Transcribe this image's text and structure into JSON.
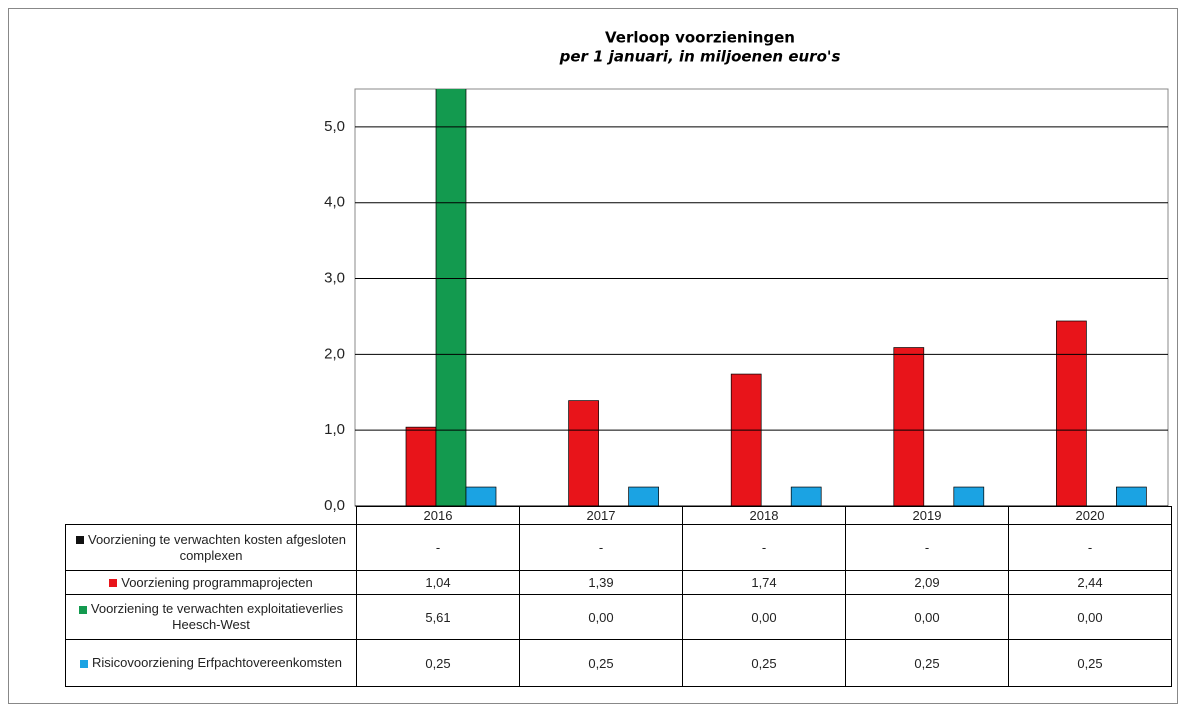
{
  "chart_data": {
    "type": "bar",
    "title": "Verloop voorzieningen",
    "subtitle": "per 1 januari, in miljoenen euro's",
    "categories": [
      "2016",
      "2017",
      "2018",
      "2019",
      "2020"
    ],
    "series": [
      {
        "name": "Voorziening te verwachten kosten afgesloten complexen",
        "color": "#111111",
        "values": [
          null,
          null,
          null,
          null,
          null
        ],
        "value_labels": [
          "-",
          "-",
          "-",
          "-",
          "-"
        ]
      },
      {
        "name": "Voorziening programmaprojecten",
        "color": "#e8141a",
        "values": [
          1.04,
          1.39,
          1.74,
          2.09,
          2.44
        ],
        "value_labels": [
          "1,04",
          "1,39",
          "1,74",
          "2,09",
          "2,44"
        ]
      },
      {
        "name": "Voorziening te verwachten exploitatieverlies Heesch-West",
        "color": "#139a4f",
        "values": [
          5.61,
          0,
          0,
          0,
          0
        ],
        "value_labels": [
          "5,61",
          "0,00",
          "0,00",
          "0,00",
          "0,00"
        ]
      },
      {
        "name": "Risicovoorziening Erfpachtovereenkomsten",
        "color": "#1ba3e3",
        "values": [
          0.25,
          0.25,
          0.25,
          0.25,
          0.25
        ],
        "value_labels": [
          "0,25",
          "0,25",
          "0,25",
          "0,25",
          "0,25"
        ]
      }
    ],
    "ylim": [
      0,
      5.5
    ],
    "yticks": [
      {
        "value": 0,
        "label": "0,0"
      },
      {
        "value": 1,
        "label": "1,0"
      },
      {
        "value": 2,
        "label": "2,0"
      },
      {
        "value": 3,
        "label": "3,0"
      },
      {
        "value": 4,
        "label": "4,0"
      },
      {
        "value": 5,
        "label": "5,0"
      }
    ],
    "grid": true
  }
}
